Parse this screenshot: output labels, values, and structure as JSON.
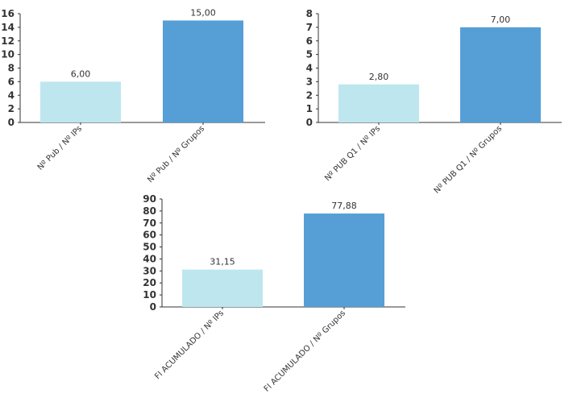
{
  "chart_data": [
    {
      "type": "bar",
      "categories": [
        "Nº Pub / Nº IPs",
        "Nº Pub / Nº Grupos"
      ],
      "values": [
        6.0,
        15.0
      ],
      "value_labels": [
        "6,00",
        "15,00"
      ],
      "ylim": [
        0,
        16
      ],
      "yticks": [
        0,
        2,
        4,
        6,
        8,
        10,
        12,
        14,
        16
      ],
      "colors": [
        "#bee6ef",
        "#559fd6"
      ],
      "grid": false,
      "legend": "none"
    },
    {
      "type": "bar",
      "categories": [
        "Nº PUB Q1 / Nº IPs",
        "Nº PUB Q1 / Nº Grupos"
      ],
      "values": [
        2.8,
        7.0
      ],
      "value_labels": [
        "2,80",
        "7,00"
      ],
      "ylim": [
        0,
        8
      ],
      "yticks": [
        0,
        1,
        2,
        3,
        4,
        5,
        6,
        7,
        8
      ],
      "colors": [
        "#bee6ef",
        "#559fd6"
      ],
      "grid": false,
      "legend": "none"
    },
    {
      "type": "bar",
      "categories": [
        "FI ACUMULADO / Nº IPs",
        "FI ACUMULADO / Nº Grupos"
      ],
      "values": [
        31.15,
        77.88
      ],
      "value_labels": [
        "31,15",
        "77,88"
      ],
      "ylim": [
        0,
        90
      ],
      "yticks": [
        0,
        10,
        20,
        30,
        40,
        50,
        60,
        70,
        80,
        90
      ],
      "colors": [
        "#bee6ef",
        "#559fd6"
      ],
      "grid": false,
      "legend": "none"
    }
  ]
}
